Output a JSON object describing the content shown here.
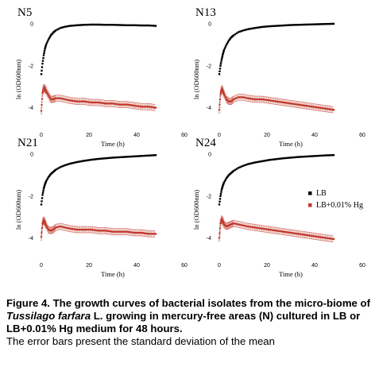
{
  "figure": {
    "caption_lead": "Figure 4. The growth curves of bacterial isolates from the micro-biome of ",
    "caption_species": "Tussilago farfara",
    "caption_bold_tail": " L. growing in mercury-free areas (N) cultured in LB or LB+0.01% Hg medium for 48 hours.",
    "caption_note": "The error bars present the standard deviation of the mean"
  },
  "chart_data": [
    {
      "type": "scatter",
      "title": "N5",
      "xlabel": "Time (h)",
      "ylabel": "ln (OD600nm)",
      "xlim": [
        0,
        60
      ],
      "ylim": [
        -5,
        0.3
      ],
      "xticks": [
        "0",
        "20",
        "40",
        "60"
      ],
      "yticks": [
        "0",
        "-2",
        "-4"
      ],
      "series": [
        {
          "name": "LB",
          "color": "#000000",
          "x": [
            0,
            0.5,
            1,
            1.5,
            2,
            3,
            4,
            5,
            6,
            8,
            10,
            12,
            15,
            18,
            21,
            24,
            27,
            30,
            33,
            36,
            39,
            42,
            45,
            48
          ],
          "y": [
            -2.4,
            -1.9,
            -1.5,
            -1.2,
            -1.0,
            -0.75,
            -0.55,
            -0.42,
            -0.32,
            -0.2,
            -0.14,
            -0.1,
            -0.07,
            -0.05,
            -0.04,
            -0.04,
            -0.05,
            -0.05,
            -0.06,
            -0.07,
            -0.07,
            -0.08,
            -0.08,
            -0.1
          ]
        },
        {
          "name": "LB+0.01% Hg",
          "color": "#c0392b",
          "x": [
            0,
            0.5,
            1,
            1.5,
            2,
            3,
            4,
            5,
            6,
            8,
            10,
            12,
            15,
            18,
            21,
            24,
            27,
            30,
            33,
            36,
            39,
            42,
            45,
            48
          ],
          "y": [
            -4.15,
            -3.3,
            -3.05,
            -3.1,
            -3.2,
            -3.4,
            -3.6,
            -3.6,
            -3.55,
            -3.55,
            -3.6,
            -3.65,
            -3.7,
            -3.7,
            -3.75,
            -3.75,
            -3.8,
            -3.8,
            -3.85,
            -3.85,
            -3.9,
            -3.95,
            -3.95,
            -4.0
          ]
        }
      ]
    },
    {
      "type": "scatter",
      "title": "N13",
      "xlabel": "Time (h)",
      "ylabel": "ln (OD600nm)",
      "xlim": [
        0,
        60
      ],
      "ylim": [
        -5,
        0.3
      ],
      "xticks": [
        "0",
        "20",
        "40",
        "60"
      ],
      "yticks": [
        "0",
        "-2",
        "-4"
      ],
      "series": [
        {
          "name": "LB",
          "color": "#000000",
          "x": [
            0,
            0.5,
            1,
            1.5,
            2,
            3,
            4,
            5,
            6,
            8,
            10,
            12,
            15,
            18,
            21,
            24,
            27,
            30,
            33,
            36,
            39,
            42,
            45,
            48
          ],
          "y": [
            -2.4,
            -2.0,
            -1.7,
            -1.45,
            -1.25,
            -1.0,
            -0.8,
            -0.65,
            -0.55,
            -0.4,
            -0.32,
            -0.26,
            -0.2,
            -0.15,
            -0.12,
            -0.1,
            -0.08,
            -0.06,
            -0.05,
            -0.04,
            -0.03,
            -0.02,
            -0.01,
            0.0
          ]
        },
        {
          "name": "LB+0.01% Hg",
          "color": "#c0392b",
          "x": [
            0,
            0.5,
            1,
            1.5,
            2,
            3,
            4,
            5,
            6,
            8,
            10,
            12,
            15,
            18,
            21,
            24,
            27,
            30,
            33,
            36,
            39,
            42,
            45,
            48
          ],
          "y": [
            -4.1,
            -3.35,
            -3.1,
            -3.2,
            -3.35,
            -3.6,
            -3.7,
            -3.7,
            -3.6,
            -3.5,
            -3.5,
            -3.55,
            -3.6,
            -3.6,
            -3.65,
            -3.7,
            -3.75,
            -3.8,
            -3.85,
            -3.9,
            -3.95,
            -4.0,
            -4.05,
            -4.1
          ]
        }
      ]
    },
    {
      "type": "scatter",
      "title": "N21",
      "xlabel": "Time (h)",
      "ylabel": "ln (OD600nm)",
      "xlim": [
        0,
        60
      ],
      "ylim": [
        -5,
        0.3
      ],
      "xticks": [
        "0",
        "20",
        "40",
        "60"
      ],
      "yticks": [
        "0",
        "-2",
        "-4"
      ],
      "series": [
        {
          "name": "LB",
          "color": "#000000",
          "x": [
            0,
            0.5,
            1,
            1.5,
            2,
            3,
            4,
            5,
            6,
            8,
            10,
            12,
            15,
            18,
            21,
            24,
            27,
            30,
            33,
            36,
            39,
            42,
            45,
            48
          ],
          "y": [
            -2.4,
            -1.95,
            -1.65,
            -1.45,
            -1.3,
            -1.1,
            -0.95,
            -0.85,
            -0.75,
            -0.62,
            -0.53,
            -0.46,
            -0.38,
            -0.32,
            -0.27,
            -0.23,
            -0.2,
            -0.17,
            -0.15,
            -0.13,
            -0.11,
            -0.09,
            -0.07,
            -0.05
          ]
        },
        {
          "name": "LB+0.01% Hg",
          "color": "#c0392b",
          "x": [
            0,
            0.5,
            1,
            1.5,
            2,
            3,
            4,
            5,
            6,
            8,
            10,
            12,
            15,
            18,
            21,
            24,
            27,
            30,
            33,
            36,
            39,
            42,
            45,
            48
          ],
          "y": [
            -3.95,
            -3.3,
            -3.15,
            -3.25,
            -3.4,
            -3.6,
            -3.65,
            -3.6,
            -3.5,
            -3.45,
            -3.5,
            -3.55,
            -3.6,
            -3.6,
            -3.6,
            -3.65,
            -3.65,
            -3.7,
            -3.7,
            -3.7,
            -3.75,
            -3.75,
            -3.8,
            -3.8
          ]
        }
      ]
    },
    {
      "type": "scatter",
      "title": "N24",
      "xlabel": "Time (h)",
      "ylabel": "ln (OD600nm)",
      "xlim": [
        0,
        60
      ],
      "ylim": [
        -5,
        0.3
      ],
      "xticks": [
        "0",
        "20",
        "40",
        "60"
      ],
      "yticks": [
        "0",
        "-2",
        "-4"
      ],
      "series": [
        {
          "name": "LB",
          "color": "#000000",
          "x": [
            0,
            0.5,
            1,
            1.5,
            2,
            3,
            4,
            5,
            6,
            8,
            10,
            12,
            15,
            18,
            21,
            24,
            27,
            30,
            33,
            36,
            39,
            42,
            45,
            48
          ],
          "y": [
            -2.4,
            -2.0,
            -1.7,
            -1.5,
            -1.35,
            -1.15,
            -1.0,
            -0.9,
            -0.8,
            -0.66,
            -0.56,
            -0.48,
            -0.4,
            -0.34,
            -0.28,
            -0.24,
            -0.2,
            -0.17,
            -0.14,
            -0.12,
            -0.1,
            -0.08,
            -0.06,
            -0.05
          ]
        },
        {
          "name": "LB+0.01% Hg",
          "color": "#c0392b",
          "x": [
            0,
            0.5,
            1,
            1.5,
            2,
            3,
            4,
            5,
            6,
            8,
            10,
            12,
            15,
            18,
            21,
            24,
            27,
            30,
            33,
            36,
            39,
            42,
            45,
            48
          ],
          "y": [
            -4.0,
            -3.3,
            -3.1,
            -3.2,
            -3.35,
            -3.45,
            -3.4,
            -3.35,
            -3.3,
            -3.35,
            -3.4,
            -3.45,
            -3.5,
            -3.55,
            -3.6,
            -3.65,
            -3.7,
            -3.75,
            -3.8,
            -3.85,
            -3.9,
            -3.95,
            -4.0,
            -4.05
          ]
        }
      ]
    }
  ],
  "legend": {
    "items": [
      {
        "label": "LB",
        "color": "#000000"
      },
      {
        "label": "LB+0.01% Hg",
        "color": "#c0392b"
      }
    ]
  }
}
